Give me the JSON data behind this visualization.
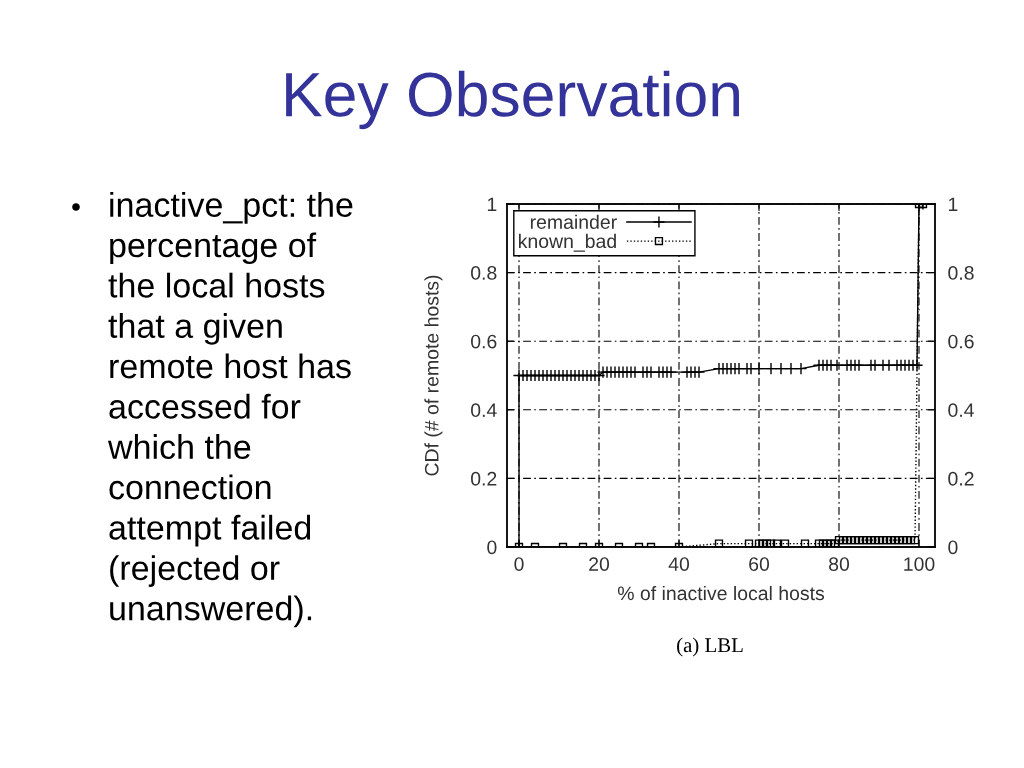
{
  "chart_data": {
    "type": "line",
    "title": "Key Observation",
    "xlabel": "% of inactive local hosts",
    "ylabel": "CDf (# of remote hosts)",
    "xlim": [
      -3,
      104
    ],
    "xticks": [
      0,
      20,
      40,
      60,
      80,
      100
    ],
    "ylim": [
      0,
      1
    ],
    "yticks": [
      0,
      0.2,
      0.4,
      0.6,
      0.8,
      1
    ],
    "y2lim": [
      0,
      1
    ],
    "y2ticks": [
      0,
      0.2,
      0.4,
      0.6,
      0.8,
      1
    ],
    "grid": true,
    "legend": "top left",
    "series": [
      {
        "name": "remainder",
        "color": "#000000",
        "marker": "cross",
        "line_style": "solid",
        "x": [
          0,
          0,
          1,
          2,
          3,
          4,
          5,
          6,
          7,
          8,
          9,
          10,
          11,
          12,
          13,
          14,
          15,
          16,
          17,
          18,
          19,
          20,
          21,
          22,
          23,
          24,
          25,
          26,
          27,
          28,
          29,
          31,
          32,
          33,
          35,
          36,
          37,
          38,
          42,
          43,
          44,
          45,
          50,
          51,
          52,
          53,
          54,
          55,
          57,
          58,
          60,
          63,
          65.5,
          68,
          70.5,
          75,
          76,
          77,
          78,
          79.5,
          82,
          83,
          84,
          85,
          88,
          89,
          91,
          92.5,
          94.5,
          95.5,
          96.5,
          97.5,
          98.5,
          99.5,
          100,
          101
        ],
        "values": [
          0,
          0.5,
          0.5,
          0.5,
          0.5,
          0.5,
          0.5,
          0.5,
          0.5,
          0.5,
          0.5,
          0.5,
          0.5,
          0.5,
          0.5,
          0.5,
          0.5,
          0.5,
          0.5,
          0.5,
          0.5,
          0.5,
          0.51,
          0.51,
          0.51,
          0.51,
          0.51,
          0.51,
          0.51,
          0.51,
          0.51,
          0.51,
          0.51,
          0.51,
          0.51,
          0.51,
          0.51,
          0.51,
          0.51,
          0.51,
          0.51,
          0.51,
          0.52,
          0.52,
          0.52,
          0.52,
          0.52,
          0.52,
          0.52,
          0.52,
          0.52,
          0.52,
          0.52,
          0.52,
          0.52,
          0.53,
          0.53,
          0.53,
          0.53,
          0.53,
          0.53,
          0.53,
          0.53,
          0.53,
          0.53,
          0.53,
          0.53,
          0.53,
          0.53,
          0.53,
          0.53,
          0.53,
          0.53,
          0.53,
          1,
          1
        ]
      },
      {
        "name": "known_bad",
        "color": "#000000",
        "marker": "square",
        "line_style": "dotted",
        "x": [
          0,
          4,
          11,
          16,
          20,
          25,
          30,
          33,
          40,
          50,
          57.5,
          60,
          61,
          62,
          63,
          64.5,
          66.5,
          71.5,
          75,
          76,
          77,
          78,
          79,
          80,
          81,
          82,
          83,
          84,
          85,
          86,
          87,
          88,
          89,
          90,
          91,
          92,
          93,
          94,
          95,
          96,
          97,
          98,
          99,
          100,
          101
        ],
        "values": [
          0,
          0,
          0,
          0,
          0,
          0,
          0,
          0,
          0,
          0.01,
          0.01,
          0.01,
          0.01,
          0.01,
          0.01,
          0.01,
          0.01,
          0.01,
          0.01,
          0.01,
          0.01,
          0.01,
          0.01,
          0.02,
          0.02,
          0.02,
          0.02,
          0.02,
          0.02,
          0.02,
          0.02,
          0.02,
          0.02,
          0.02,
          0.02,
          0.02,
          0.02,
          0.02,
          0.02,
          0.02,
          0.02,
          0.02,
          0.02,
          1,
          1
        ]
      }
    ],
    "annotations": [
      "inactive_pct: the percentage of the local hosts that a given remote host has accessed for which the connection attempt failed (rejected or unanswered).",
      "(a) LBL"
    ]
  }
}
